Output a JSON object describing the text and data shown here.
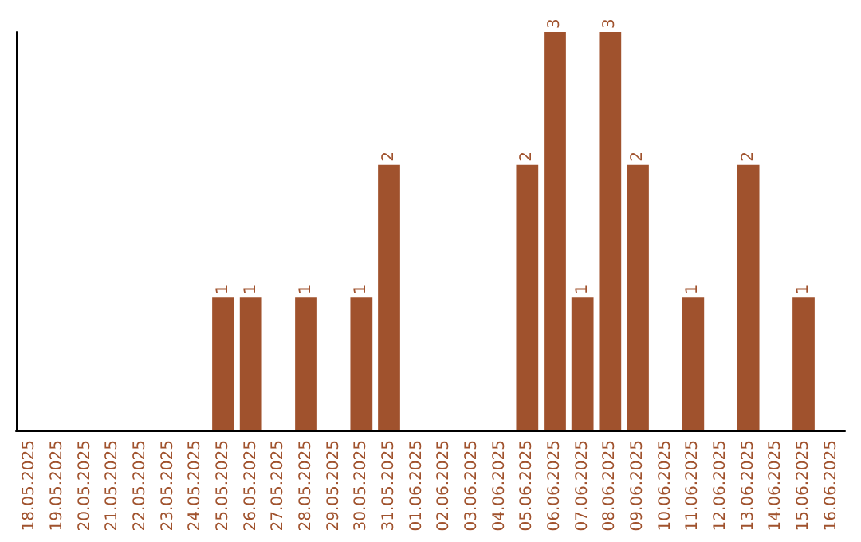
{
  "chart_data": {
    "type": "bar",
    "categories": [
      "18.05.2025",
      "19.05.2025",
      "20.05.2025",
      "21.05.2025",
      "22.05.2025",
      "23.05.2025",
      "24.05.2025",
      "25.05.2025",
      "26.05.2025",
      "27.05.2025",
      "28.05.2025",
      "29.05.2025",
      "30.05.2025",
      "31.05.2025",
      "01.06.2025",
      "02.06.2025",
      "03.06.2025",
      "04.06.2025",
      "05.06.2025",
      "06.06.2025",
      "07.06.2025",
      "08.06.2025",
      "09.06.2025",
      "10.06.2025",
      "11.06.2025",
      "12.06.2025",
      "13.06.2025",
      "14.06.2025",
      "15.06.2025",
      "16.06.2025"
    ],
    "values": [
      0,
      0,
      0,
      0,
      0,
      0,
      0,
      1,
      1,
      0,
      1,
      0,
      1,
      2,
      0,
      0,
      0,
      0,
      2,
      3,
      1,
      3,
      2,
      0,
      1,
      0,
      2,
      0,
      1,
      0
    ],
    "value_labels": [
      null,
      null,
      null,
      null,
      null,
      null,
      null,
      "1",
      "1",
      null,
      "1",
      null,
      "1",
      "2",
      null,
      null,
      null,
      null,
      "2",
      "3",
      "1",
      "3",
      "2",
      null,
      "1",
      null,
      "2",
      null,
      "1",
      null
    ],
    "color": "#a0522d",
    "grid": false,
    "tick_labels": "x"
  }
}
